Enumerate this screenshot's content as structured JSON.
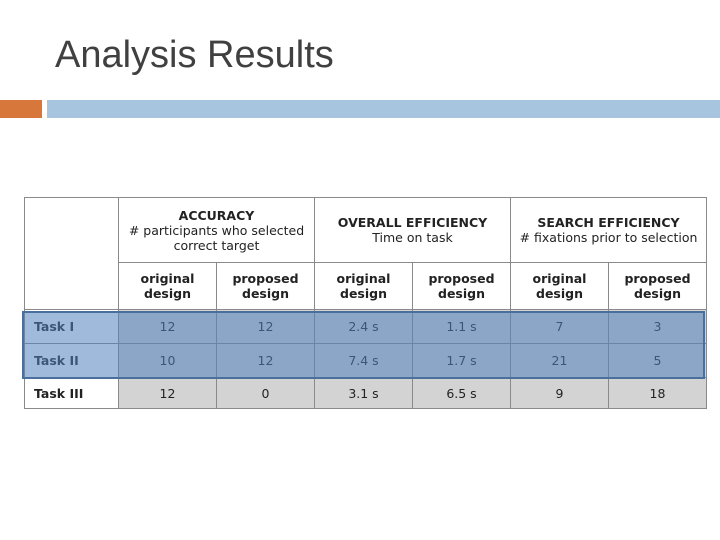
{
  "title": "Analysis Results",
  "table": {
    "groups": [
      {
        "name": "ACCURACY",
        "desc": "# participants who selected correct target"
      },
      {
        "name": "OVERALL EFFICIENCY",
        "desc": "Time on task"
      },
      {
        "name": "SEARCH EFFICIENCY",
        "desc": "# fixations prior to selection"
      }
    ],
    "subheaders": [
      "original design",
      "proposed design",
      "original design",
      "proposed design",
      "original design",
      "proposed design"
    ],
    "rows": [
      [
        "Task I",
        "12",
        "12",
        "2.4 s",
        "1.1 s",
        "7",
        "3"
      ],
      [
        "Task II",
        "10",
        "12",
        "7.4 s",
        "1.7 s",
        "21",
        "5"
      ],
      [
        "Task III",
        "12",
        "0",
        "3.1 s",
        "6.5 s",
        "9",
        "18"
      ]
    ]
  }
}
